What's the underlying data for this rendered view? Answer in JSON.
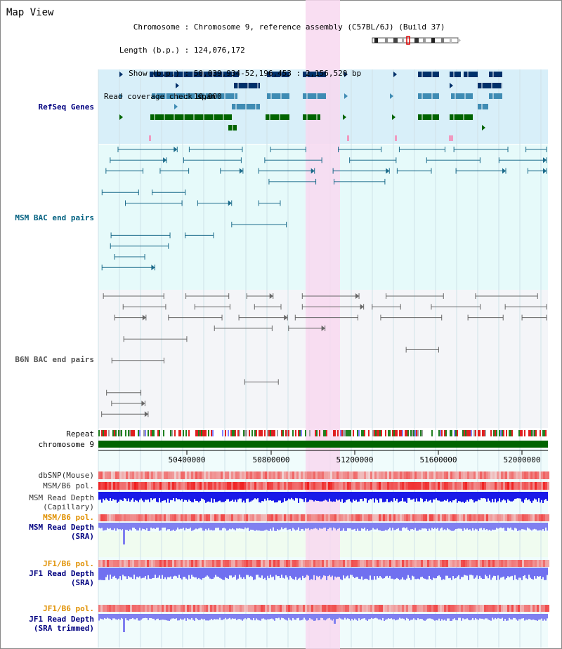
{
  "page_title": "Map View",
  "info": {
    "chromosome_key": "Chromosome",
    "chromosome_value": "Chromosome 9, reference assembly (C57BL/6J) (Build 37)",
    "length_key": "Length (b.p.)",
    "length_value": "124,076,172",
    "show_key": "Show (b.p.)",
    "show_value": "50,039,934-52,196,453 : 2,156,520 bp",
    "coverage_key": "Read coverage check span",
    "coverage_value": "10,000"
  },
  "tracks": {
    "refseq": "RefSeq Genes",
    "msm_bac": "MSM BAC end pairs",
    "b6n_bac": "B6N BAC end pairs",
    "repeat": "Repeat",
    "chromosome": "chromosome 9",
    "dbsnp": "dbSNP(Mouse)",
    "msm_b6_pol_1": "MSM/B6 pol.",
    "msm_depth_cap_1": "MSM Read Depth",
    "msm_depth_cap_2": "(Capillary)",
    "msm_b6_pol_2": "MSM/B6 pol.",
    "msm_depth_sra_1": "MSM Read Depth",
    "msm_depth_sra_2": "(SRA)",
    "jf1_b6_pol_1": "JF1/B6 pol.",
    "jf1_depth_sra_1": "JF1 Read Depth",
    "jf1_depth_sra_2": "(SRA)",
    "jf1_b6_pol_2": "JF1/B6 pol.",
    "jf1_depth_trim_1": "JF1 Read Depth",
    "jf1_depth_trim_2": "(SRA trimmed)"
  },
  "axis": {
    "ticks": [
      "50400000",
      "50800000",
      "51200000",
      "51600000",
      "52000000"
    ]
  },
  "colors": {
    "refseq_bg": "#d8eff9",
    "msm_bg": "#e6fafa",
    "b6n_bg": "#f4f5f8",
    "highlight": "#f8d8f0",
    "gene_dark": "#00306a",
    "gene_mid": "#3f8cb4",
    "gene_green": "#006400",
    "msm_pair": "#1a6a8a",
    "b6n_pair": "#666666",
    "chromosome_bar": "#006400",
    "pol_red": "#e84040",
    "depth_blue": "#2020e0",
    "depth_light": "#8080f0",
    "label_navy": "#000080",
    "label_orange": "#e09000",
    "label_teal": "#006080"
  }
}
